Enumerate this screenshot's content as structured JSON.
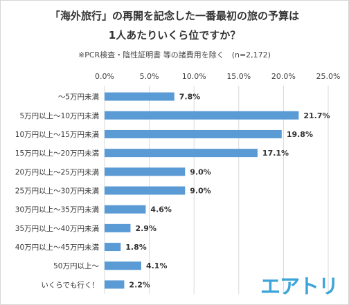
{
  "title_line1": "「海外旅行」の再開を記念した一番最初の旅の予算は",
  "title_line2": "1人あたりいくら位ですか？",
  "note": "※PCR検査・陰性証明書 等の諸費用を除く　(n=2,172)",
  "logo_text": "エアトリ",
  "colors": {
    "bar": "#5b9bd5",
    "grid": "#d9d9d9",
    "logo": "#3ca4d8"
  },
  "chart_data": {
    "type": "bar",
    "orientation": "horizontal",
    "categories": [
      "～5万円未満",
      "5万円以上～10万円未満",
      "10万円以上～15万円未満",
      "15万円以上～20万円未満",
      "20万円以上～25万円未満",
      "25万円以上～30万円未満",
      "30万円以上～35万円未満",
      "35万円以上～40万円未満",
      "40万円以上～45万円未満",
      "50万円以上～",
      "いくらでも行く！"
    ],
    "values": [
      7.8,
      21.7,
      19.8,
      17.1,
      9.0,
      9.0,
      4.6,
      2.9,
      1.8,
      4.1,
      2.2
    ],
    "value_labels": [
      "7.8%",
      "21.7%",
      "19.8%",
      "17.1%",
      "9.0%",
      "9.0%",
      "4.6%",
      "2.9%",
      "1.8%",
      "4.1%",
      "2.2%"
    ],
    "xlim": [
      0,
      25
    ],
    "ticks": [
      0,
      5,
      10,
      15,
      20,
      25
    ],
    "tick_labels": [
      "0.0%",
      "5.0%",
      "10.0%",
      "15.0%",
      "20.0%",
      "25.0%"
    ],
    "axis_position": "top",
    "grid": true
  }
}
